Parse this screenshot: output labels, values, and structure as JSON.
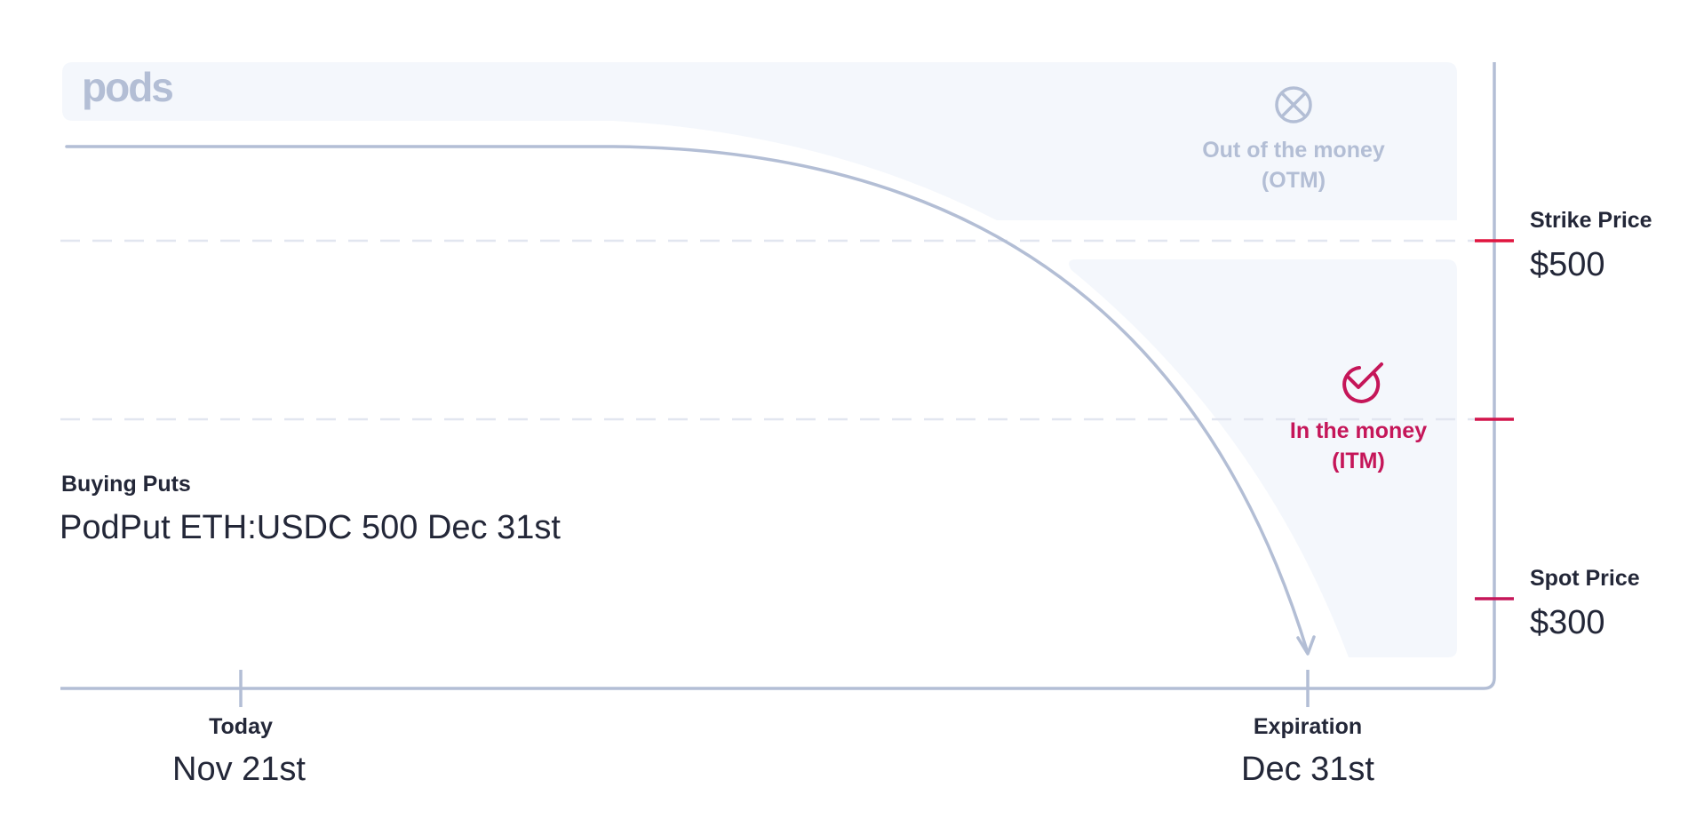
{
  "brand": {
    "logo_text": "pods"
  },
  "colors": {
    "axis": "#b3bed5",
    "zone_fill": "#f4f7fc",
    "dashed": "#e2e6f0",
    "accent_red": "#e0153f",
    "accent_magenta": "#c51659",
    "text_dark": "#232738",
    "otm_text": "#b3bed5"
  },
  "title": {
    "kicker": "Buying Puts",
    "headline": "PodPut ETH:USDC 500 Dec 31st"
  },
  "zones": {
    "otm": {
      "line1": "Out of the money",
      "line2": "(OTM)",
      "icon": "x-circle-icon"
    },
    "itm": {
      "line1": "In the money",
      "line2": "(ITM)",
      "icon": "check-circle-icon"
    }
  },
  "price_axis": {
    "strike": {
      "label": "Strike Price",
      "value": "$500"
    },
    "spot": {
      "label": "Spot Price",
      "value": "$300"
    }
  },
  "time_axis": {
    "start": {
      "label": "Today",
      "date": "Nov 21st"
    },
    "end": {
      "label": "Expiration",
      "date": "Dec 31st"
    }
  }
}
